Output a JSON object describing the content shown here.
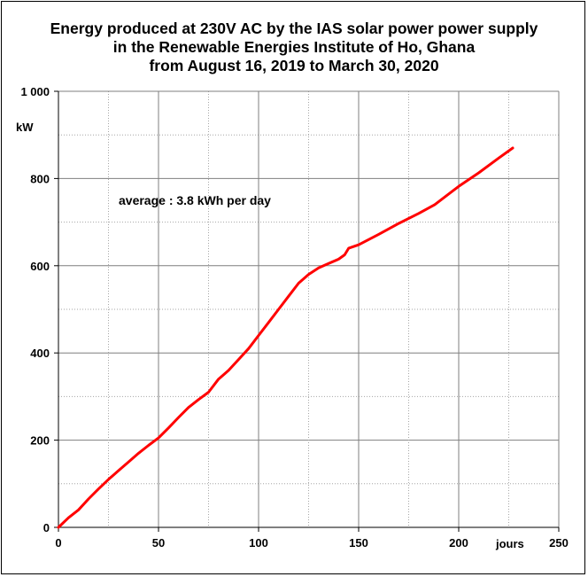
{
  "chart_data": {
    "type": "line",
    "title_lines": [
      "Energy produced at 230V AC by the IAS solar power power supply",
      "in the Renewable Energies Institute of Ho, Ghana",
      "from August 16, 2019  to March 30, 2020"
    ],
    "xlabel": "jours",
    "ylabel": "kW",
    "xlim": [
      0,
      250
    ],
    "ylim": [
      0,
      1000
    ],
    "x_ticks": [
      0,
      50,
      100,
      150,
      200,
      250
    ],
    "y_ticks": [
      0,
      200,
      400,
      600,
      800,
      1000
    ],
    "x_tick_labels": [
      "0",
      "50",
      "100",
      "150",
      "200",
      "250"
    ],
    "y_tick_labels": [
      "0",
      "200",
      "400",
      "600",
      "800",
      "1 000"
    ],
    "grid": true,
    "annotation": "average : 3.8  kWh per day",
    "series": [
      {
        "color": "#ff0000",
        "x": [
          0,
          5,
          10,
          15,
          20,
          25,
          30,
          35,
          40,
          45,
          50,
          55,
          60,
          65,
          70,
          75,
          80,
          85,
          90,
          95,
          100,
          105,
          110,
          115,
          120,
          125,
          130,
          135,
          140,
          143,
          145,
          150,
          160,
          170,
          180,
          188,
          200,
          210,
          220,
          227
        ],
        "y": [
          0,
          22,
          40,
          65,
          88,
          110,
          130,
          150,
          170,
          188,
          205,
          228,
          252,
          275,
          293,
          310,
          340,
          360,
          385,
          410,
          440,
          470,
          500,
          530,
          560,
          580,
          595,
          605,
          615,
          625,
          640,
          648,
          672,
          697,
          720,
          740,
          782,
          813,
          847,
          870
        ]
      }
    ]
  }
}
